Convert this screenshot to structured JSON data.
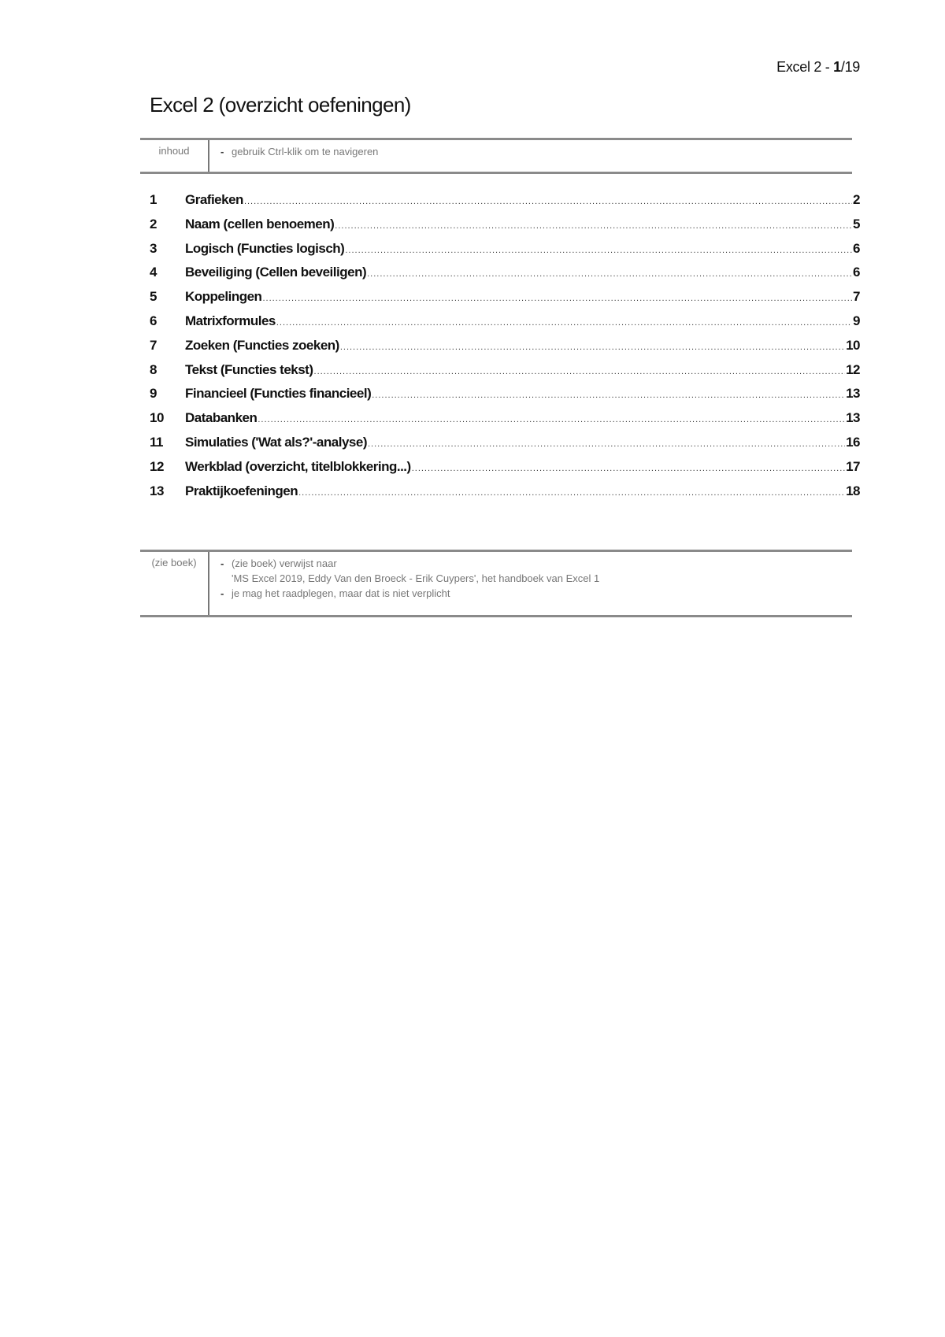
{
  "header": {
    "prefix": "Excel 2 - ",
    "page": "1",
    "total": "/19"
  },
  "title": "Excel 2 (overzicht oefeningen)",
  "info_box": {
    "label": "inhoud",
    "items": [
      "gebruik Ctrl-klik om te navigeren"
    ]
  },
  "toc": [
    {
      "num": "1",
      "title": "Grafieken",
      "page": "2"
    },
    {
      "num": "2",
      "title": "Naam (cellen benoemen)",
      "page": "5"
    },
    {
      "num": "3",
      "title": "Logisch (Functies logisch)",
      "page": "6"
    },
    {
      "num": "4",
      "title": "Beveiliging (Cellen beveiligen)",
      "page": "6"
    },
    {
      "num": "5",
      "title": "Koppelingen",
      "page": "7"
    },
    {
      "num": "6",
      "title": "Matrixformules",
      "page": "9"
    },
    {
      "num": "7",
      "title": "Zoeken (Functies zoeken)",
      "page": "10"
    },
    {
      "num": "8",
      "title": "Tekst (Functies tekst)",
      "page": "12"
    },
    {
      "num": "9",
      "title": "Financieel (Functies financieel)",
      "page": "13"
    },
    {
      "num": "10",
      "title": "Databanken",
      "page": "13"
    },
    {
      "num": "11",
      "title": "Simulaties ('Wat als?'-analyse)",
      "page": "16"
    },
    {
      "num": "12",
      "title": "Werkblad (overzicht, titelblokkering...)",
      "page": "17"
    },
    {
      "num": "13",
      "title": "Praktijkoefeningen",
      "page": "18"
    }
  ],
  "book_box": {
    "label": "(zie boek)",
    "item1": "(zie boek) verwijst naar",
    "item1_cont": "'MS Excel 2019, Eddy Van den Broeck - Erik Cuypers', het handboek van Excel 1",
    "item2": "je mag het raadplegen, maar dat is niet verplicht",
    "bullet": "-"
  }
}
